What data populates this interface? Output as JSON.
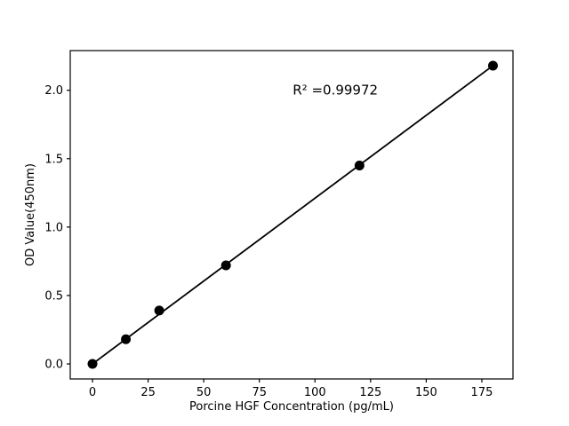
{
  "figure": {
    "background": "#ffffff",
    "text_color": "#000000"
  },
  "chart_data": {
    "type": "scatter",
    "title": "",
    "xlabel": "Porcine HGF Concentration (pg/mL)",
    "ylabel": "OD Value(450nm)",
    "x": [
      0,
      15,
      30,
      60,
      120,
      180
    ],
    "y": [
      0.0,
      0.18,
      0.39,
      0.72,
      1.45,
      2.18
    ],
    "fit_line": {
      "x": [
        0,
        180
      ],
      "y": [
        0.0,
        2.18
      ]
    },
    "annotation": {
      "text": "R² =0.99972",
      "x": 90,
      "y": 2.0
    },
    "x_ticks": [
      0,
      25,
      50,
      75,
      100,
      125,
      150,
      175
    ],
    "y_ticks": [
      "0.0",
      "0.5",
      "1.0",
      "1.5",
      "2.0"
    ],
    "xlim": [
      -10,
      189
    ],
    "ylim": [
      -0.11,
      2.29
    ],
    "grid": false,
    "legend": null,
    "marker_color": "#000000",
    "marker_radius": 5.5,
    "line_color": "#000000",
    "line_width": 1.8
  }
}
